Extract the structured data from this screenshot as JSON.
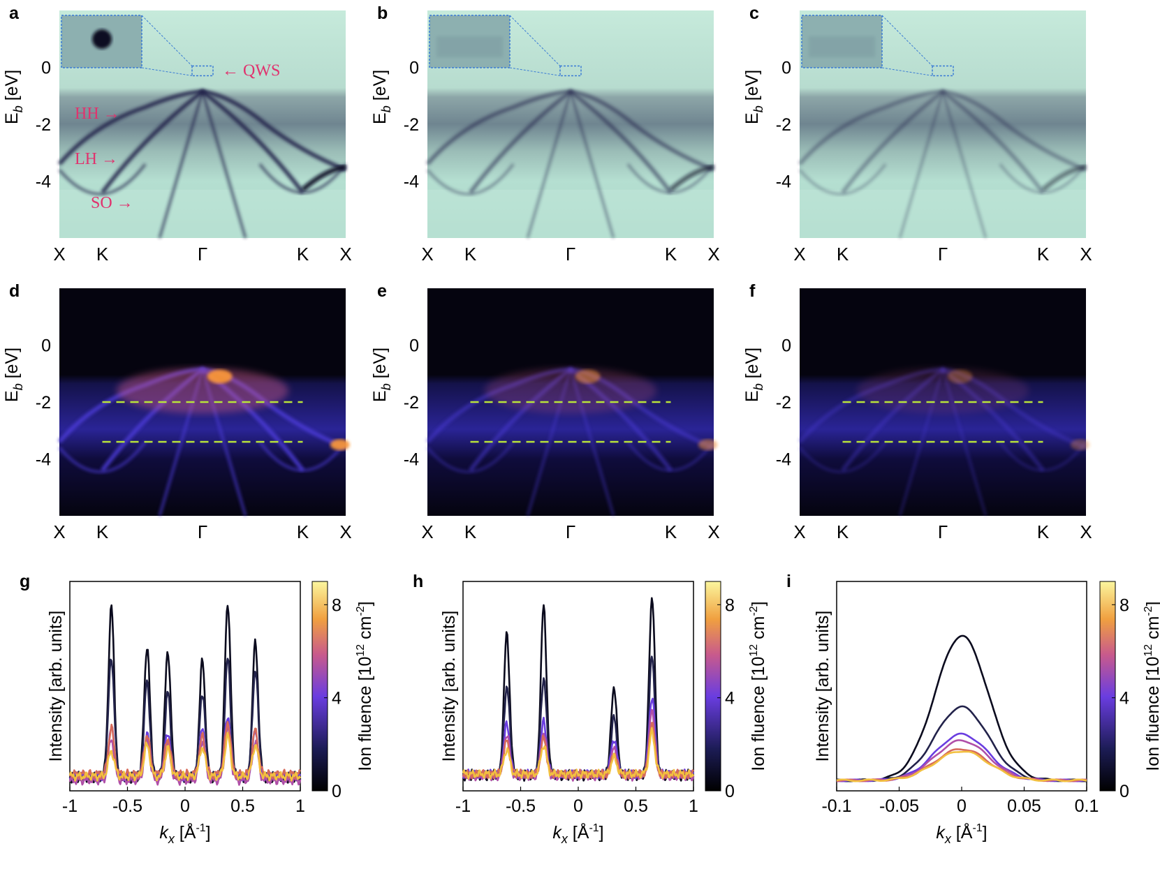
{
  "figure": {
    "panel_labels": [
      "a",
      "b",
      "c",
      "d",
      "e",
      "f",
      "g",
      "h",
      "i"
    ],
    "ylabel_main": "E",
    "ylabel_sub": "b",
    "ylabel_unit": "[eV]",
    "energy_ticks": [
      "0",
      "-2",
      "-4"
    ],
    "k_labels": [
      "X",
      "K",
      "Γ",
      "K",
      "X"
    ],
    "annotations": {
      "qws": "← QWS",
      "hh": "HH →",
      "lh": "LH →",
      "so": "SO →"
    },
    "colorbar": {
      "label_main": "Ion fluence [10",
      "label_exp": "12",
      "label_unit": " cm",
      "label_exp2": "-2",
      "label_close": "]",
      "ticks": [
        "0",
        "4",
        "8"
      ]
    },
    "intensity_label": "Intensity [arb. units]",
    "kx_label_main": "k",
    "kx_label_sub": "x",
    "kx_label_unit": "[Å",
    "kx_label_exp": "-1",
    "kx_label_close": "]"
  },
  "colors": {
    "background": "#ffffff",
    "arpes_bg": "#c6eadb",
    "arpes_band": "#2a2a56",
    "inferno_bg": "#05040f",
    "inferno_band": "#4b3bd6",
    "inferno_hot": "#ff9a35",
    "dashed_line": "#b9e43a",
    "annotation": "#e0336e",
    "inset_border": "#3a7bd5"
  },
  "chart_data": [
    {
      "panel": "g",
      "type": "line",
      "xlabel": "kx [Å-1]",
      "ylabel": "Intensity [arb. units]",
      "xlim": [
        -1,
        1
      ],
      "xticks": [
        "-1",
        "-0.5",
        "0",
        "0.5",
        "1"
      ],
      "ylim": [
        0,
        1
      ],
      "peak_positions": [
        -0.64,
        -0.33,
        -0.15,
        0.15,
        0.37,
        0.61
      ],
      "series": [
        {
          "fluence": 0,
          "color": "#0b0b1e",
          "peak_heights": [
            0.88,
            0.69,
            0.67,
            0.62,
            0.9,
            0.71
          ],
          "baseline": 0.06
        },
        {
          "fluence": 1,
          "color": "#22224a",
          "peak_heights": [
            0.64,
            0.52,
            0.47,
            0.47,
            0.63,
            0.58
          ],
          "baseline": 0.07
        },
        {
          "fluence": 4,
          "color": "#6a3de0",
          "peak_heights": [
            0.3,
            0.28,
            0.28,
            0.29,
            0.36,
            0.28
          ],
          "baseline": 0.07
        },
        {
          "fluence": 5,
          "color": "#b04fa8",
          "peak_heights": [
            0.25,
            0.24,
            0.22,
            0.24,
            0.3,
            0.24
          ],
          "baseline": 0.05
        },
        {
          "fluence": 6,
          "color": "#d66a5a",
          "peak_heights": [
            0.3,
            0.27,
            0.25,
            0.26,
            0.33,
            0.29
          ],
          "baseline": 0.08
        },
        {
          "fluence": 8,
          "color": "#f2c040",
          "peak_heights": [
            0.19,
            0.22,
            0.2,
            0.21,
            0.26,
            0.22
          ],
          "baseline": 0.07
        }
      ]
    },
    {
      "panel": "h",
      "type": "line",
      "xlabel": "kx [Å-1]",
      "ylabel": "Intensity [arb. units]",
      "xlim": [
        -1,
        1
      ],
      "xticks": [
        "-1",
        "-0.5",
        "0",
        "0.5",
        "1"
      ],
      "ylim": [
        0,
        1
      ],
      "peak_positions": [
        -0.62,
        -0.3,
        0.31,
        0.64
      ],
      "series": [
        {
          "fluence": 0,
          "color": "#0b0b1e",
          "peak_heights": [
            0.75,
            0.88,
            0.5,
            0.93
          ],
          "baseline": 0.07
        },
        {
          "fluence": 1,
          "color": "#22224a",
          "peak_heights": [
            0.5,
            0.54,
            0.35,
            0.64
          ],
          "baseline": 0.08
        },
        {
          "fluence": 4,
          "color": "#6a3de0",
          "peak_heights": [
            0.32,
            0.33,
            0.25,
            0.45
          ],
          "baseline": 0.08
        },
        {
          "fluence": 5,
          "color": "#b04fa8",
          "peak_heights": [
            0.27,
            0.28,
            0.2,
            0.38
          ],
          "baseline": 0.07
        },
        {
          "fluence": 6,
          "color": "#d66a5a",
          "peak_heights": [
            0.24,
            0.25,
            0.18,
            0.33
          ],
          "baseline": 0.08
        },
        {
          "fluence": 8,
          "color": "#f2c040",
          "peak_heights": [
            0.2,
            0.22,
            0.16,
            0.28
          ],
          "baseline": 0.08
        }
      ]
    },
    {
      "panel": "i",
      "type": "line",
      "xlabel": "kx [Å-1]",
      "ylabel": "Intensity [arb. units]",
      "xlim": [
        -0.1,
        0.1
      ],
      "xticks": [
        "-0.1",
        "-0.05",
        "0",
        "0.05",
        "0.1"
      ],
      "ylim": [
        0,
        1
      ],
      "peak_positions": [
        0
      ],
      "series": [
        {
          "fluence": 0,
          "color": "#0b0b1e",
          "peak_heights": [
            0.74
          ],
          "baseline": 0.05
        },
        {
          "fluence": 1,
          "color": "#22224a",
          "peak_heights": [
            0.4
          ],
          "baseline": 0.05
        },
        {
          "fluence": 4,
          "color": "#6a3de0",
          "peak_heights": [
            0.27
          ],
          "baseline": 0.05
        },
        {
          "fluence": 5,
          "color": "#b04fa8",
          "peak_heights": [
            0.24
          ],
          "baseline": 0.05
        },
        {
          "fluence": 6,
          "color": "#d66a5a",
          "peak_heights": [
            0.2
          ],
          "baseline": 0.05
        },
        {
          "fluence": 8,
          "color": "#f2c040",
          "peak_heights": [
            0.19
          ],
          "baseline": 0.05
        }
      ]
    }
  ]
}
